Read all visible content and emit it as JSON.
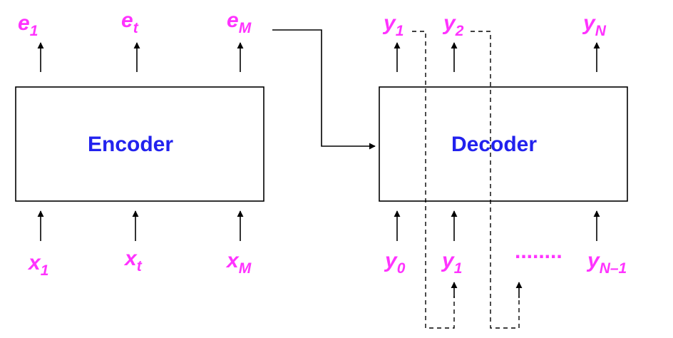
{
  "encoder": {
    "label": "Encoder",
    "outputs": [
      {
        "main": "e",
        "sub": "1"
      },
      {
        "main": "e",
        "sub": "t"
      },
      {
        "main": "e",
        "sub": "M"
      }
    ],
    "inputs": [
      {
        "main": "x",
        "sub": "1"
      },
      {
        "main": "x",
        "sub": "t"
      },
      {
        "main": "x",
        "sub": "M"
      }
    ]
  },
  "decoder": {
    "label": "Decoder",
    "outputs": [
      {
        "main": "y",
        "sub": "1"
      },
      {
        "main": "y",
        "sub": "2"
      },
      {
        "main": "y",
        "sub": "N"
      }
    ],
    "inputs": [
      {
        "main": "y",
        "sub": "0"
      },
      {
        "main": "y",
        "sub": "1"
      },
      {
        "main": "y",
        "sub": "N–1"
      }
    ],
    "ellipsis": "........"
  },
  "colors": {
    "label": "#ff33ff",
    "box_text": "#2222ee",
    "lines": "#000000"
  }
}
